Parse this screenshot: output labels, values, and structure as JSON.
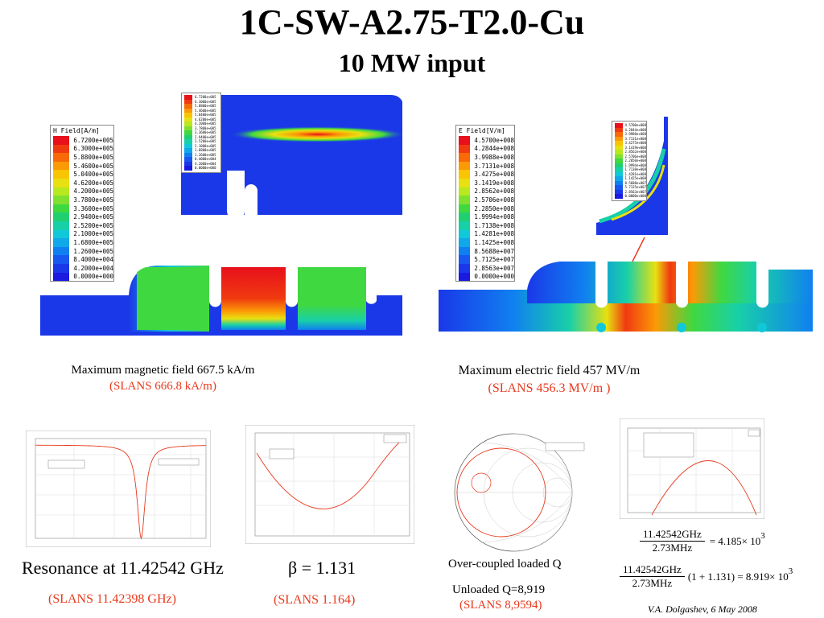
{
  "title": "1C-SW-A2.75-T2.0-Cu",
  "subtitle": "10 MW input",
  "h_field": {
    "legend_title": "H Field[A/m]",
    "legend_values": [
      "6.7200e+005",
      "6.3000e+005",
      "5.8800e+005",
      "5.4600e+005",
      "5.0400e+005",
      "4.6200e+005",
      "4.2000e+005",
      "3.7800e+005",
      "3.3600e+005",
      "2.9400e+005",
      "2.5200e+005",
      "2.1000e+005",
      "1.6800e+005",
      "1.2600e+005",
      "8.4000e+004",
      "4.2000e+004",
      "0.0000e+000"
    ],
    "caption": "Maximum magnetic field 667.5 kA/m",
    "slans": "(SLANS 666.8 kA/m)"
  },
  "e_field": {
    "legend_title": "E Field[V/m]",
    "legend_values": [
      "4.5700e+008",
      "4.2844e+008",
      "3.9988e+008",
      "3.7131e+008",
      "3.4275e+008",
      "3.1419e+008",
      "2.8562e+008",
      "2.5706e+008",
      "2.2850e+008",
      "1.9994e+008",
      "1.7138e+008",
      "1.4281e+008",
      "1.1425e+008",
      "8.5688e+007",
      "5.7125e+007",
      "2.8563e+007",
      "0.0000e+000"
    ],
    "caption": "Maximum electric field 457 MV/m",
    "slans": "(SLANS 456.3 MV/m )"
  },
  "scale_colors": [
    "#e8101a",
    "#f03a10",
    "#f86a08",
    "#fb9a06",
    "#f8c404",
    "#e8e010",
    "#b8e820",
    "#80e030",
    "#40d840",
    "#20d070",
    "#18d0a8",
    "#10c8d8",
    "#10a8e8",
    "#1080f0",
    "#1858f0",
    "#1a38e8",
    "#1a1ae0"
  ],
  "resonance": {
    "label": "Resonance at 11.42542 GHz",
    "slans": "(SLANS 11.42398 GHz)",
    "chart_min_x": 0.62
  },
  "beta": {
    "label": "β = 1.131",
    "slans": "(SLANS 1.164)"
  },
  "smith": {
    "label": "Over-coupled loaded Q",
    "unloaded": "Unloaded Q=8,919",
    "slans": "(SLANS 8,9594)"
  },
  "formula1": {
    "numer": "11.42542GHz",
    "denom": "2.73MHz",
    "result": "= 4.185× 10",
    "exp": "3"
  },
  "formula2": {
    "numer": "11.42542GHz",
    "denom": "2.73MHz",
    "factor": "(1 + 1.131) = 8.919× 10",
    "exp": "3"
  },
  "author": "V.A. Dolgashev, 6 May 2008"
}
